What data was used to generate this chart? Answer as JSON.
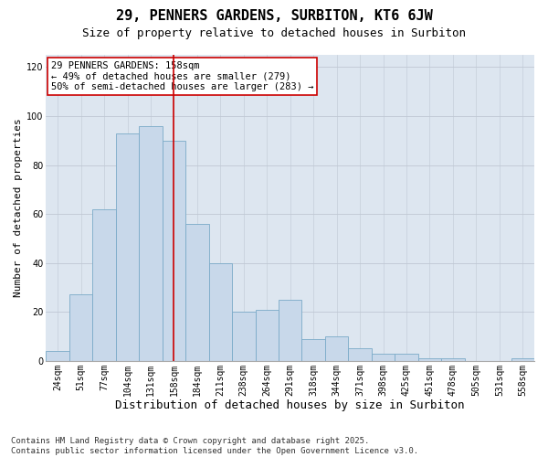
{
  "title": "29, PENNERS GARDENS, SURBITON, KT6 6JW",
  "subtitle": "Size of property relative to detached houses in Surbiton",
  "xlabel": "Distribution of detached houses by size in Surbiton",
  "ylabel": "Number of detached properties",
  "categories": [
    "24sqm",
    "51sqm",
    "77sqm",
    "104sqm",
    "131sqm",
    "158sqm",
    "184sqm",
    "211sqm",
    "238sqm",
    "264sqm",
    "291sqm",
    "318sqm",
    "344sqm",
    "371sqm",
    "398sqm",
    "425sqm",
    "451sqm",
    "478sqm",
    "505sqm",
    "531sqm",
    "558sqm"
  ],
  "values": [
    4,
    27,
    62,
    93,
    96,
    90,
    56,
    40,
    20,
    21,
    25,
    9,
    10,
    5,
    3,
    3,
    1,
    1,
    0,
    0,
    1
  ],
  "bar_color": "#c8d8ea",
  "bar_edge_color": "#7aaac8",
  "vline_x": 5,
  "vline_color": "#cc0000",
  "annotation_text": "29 PENNERS GARDENS: 158sqm\n← 49% of detached houses are smaller (279)\n50% of semi-detached houses are larger (283) →",
  "annotation_box_facecolor": "#ffffff",
  "annotation_box_edgecolor": "#cc0000",
  "ylim": [
    0,
    125
  ],
  "yticks": [
    0,
    20,
    40,
    60,
    80,
    100,
    120
  ],
  "grid_color": "#c0c8d4",
  "plot_bg_color": "#dde6f0",
  "fig_bg_color": "#ffffff",
  "footer": "Contains HM Land Registry data © Crown copyright and database right 2025.\nContains public sector information licensed under the Open Government Licence v3.0.",
  "title_fontsize": 11,
  "subtitle_fontsize": 9,
  "xlabel_fontsize": 9,
  "ylabel_fontsize": 8,
  "tick_fontsize": 7,
  "annotation_fontsize": 7.5,
  "footer_fontsize": 6.5
}
